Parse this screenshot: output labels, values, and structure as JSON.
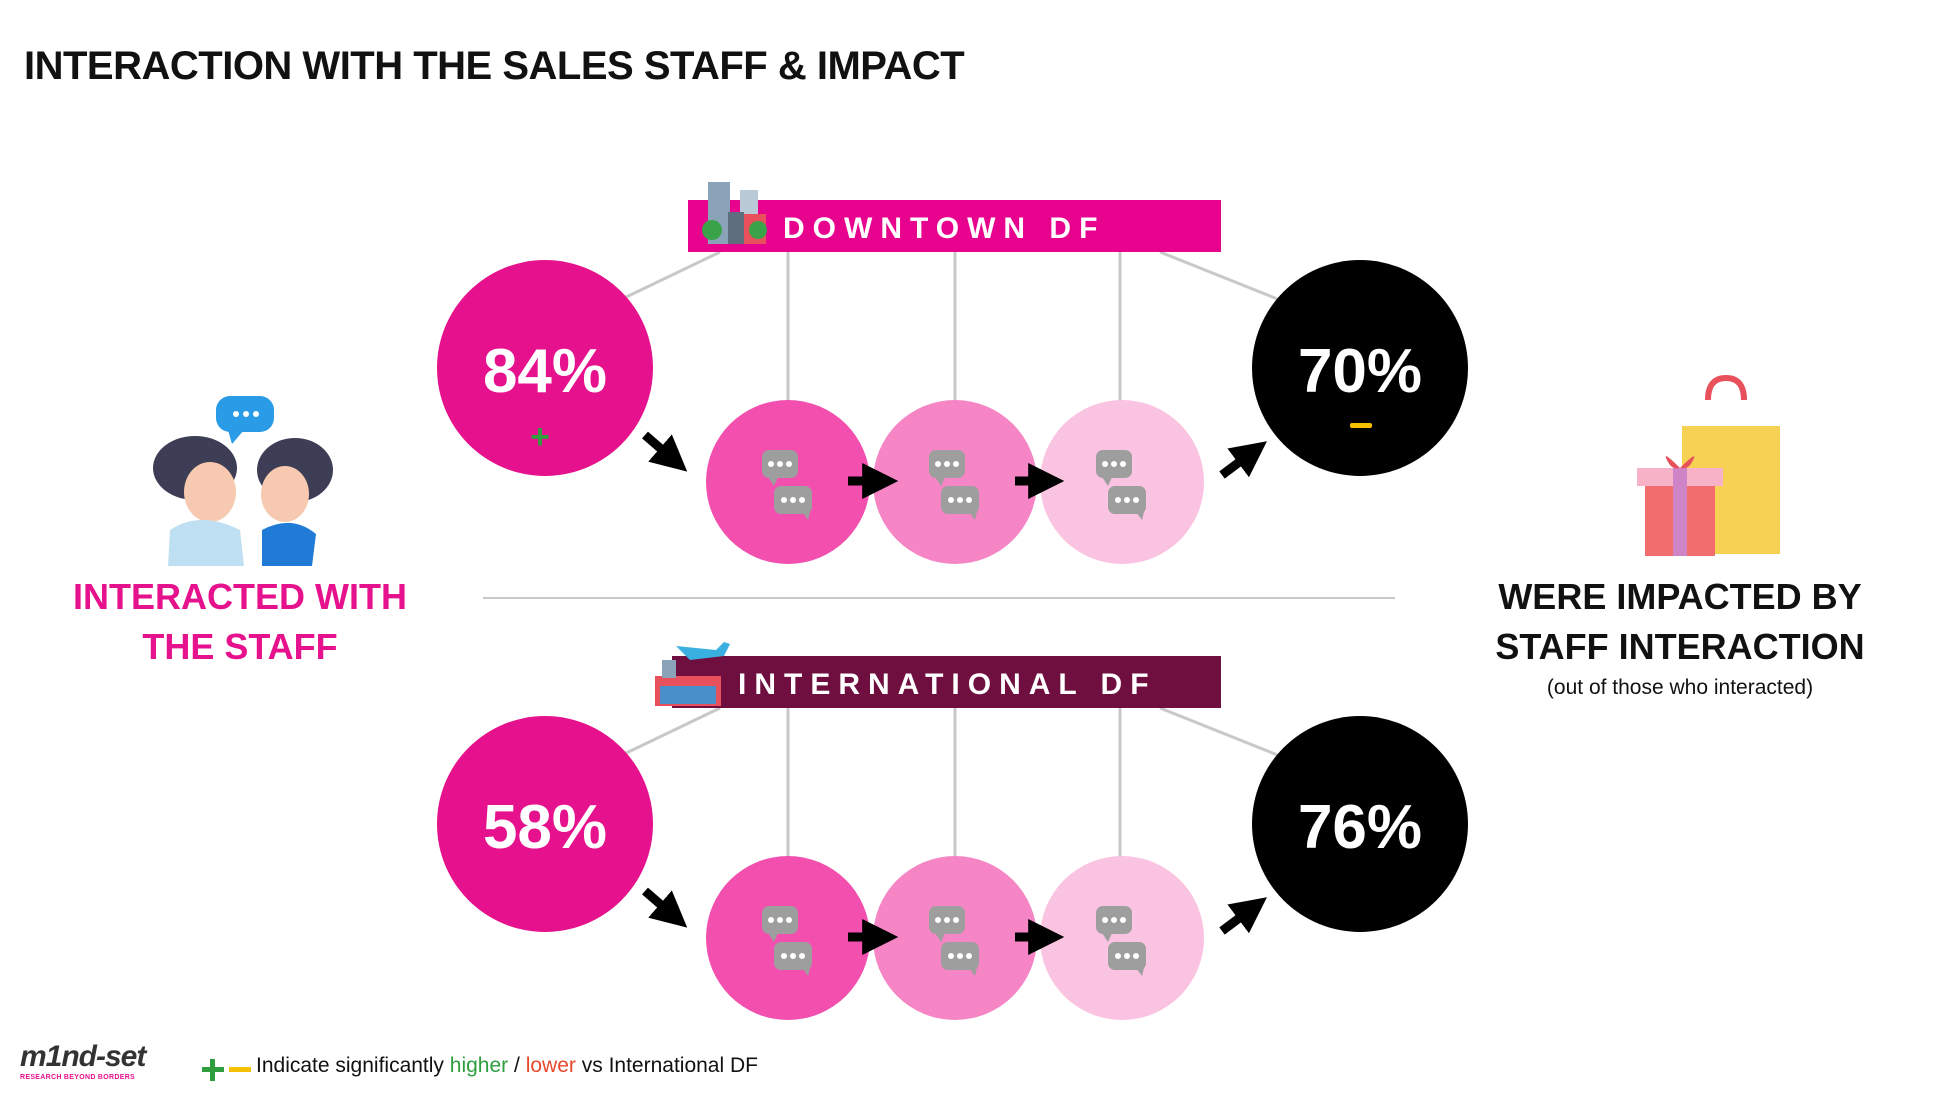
{
  "title": "INTERACTION WITH THE SALES STAFF & IMPACT",
  "left_label": [
    "INTERACTED WITH",
    "THE STAFF"
  ],
  "right_label": [
    "WERE IMPACTED BY",
    "STAFF INTERACTION"
  ],
  "right_note": "(out of those who interacted)",
  "segments": [
    {
      "name": "DOWNTOWN DF",
      "interacted": "84%",
      "impacted": "70%",
      "interacted_sig": "+",
      "impacted_sig": "−",
      "banner_color": "#e8038f"
    },
    {
      "name": "INTERNATIONAL DF",
      "interacted": "58%",
      "impacted": "76%",
      "interacted_sig": "",
      "impacted_sig": "",
      "banner_color": "#6e0f3f"
    }
  ],
  "legend": {
    "prefix": "Indicate significantly",
    "higher": "higher",
    "slash": "/",
    "lower": "lower",
    "suffix": "vs International DF"
  },
  "logo": {
    "word": "m1nd-set",
    "tagline": "RESEARCH BEYOND BORDERS"
  },
  "colors": {
    "pink": "#e6118c",
    "pink_mid": "#f27cbc",
    "pink_light": "#f9c3e1",
    "black": "#000000",
    "higher": "#2e9e3e",
    "lower": "#f5c000"
  },
  "icons": {
    "left": "two-women-talking-icon",
    "right": "gift-shopping-bag-icon",
    "downtown": "city-buildings-icon",
    "international": "airport-icon",
    "chat": "chat-bubbles-icon"
  }
}
